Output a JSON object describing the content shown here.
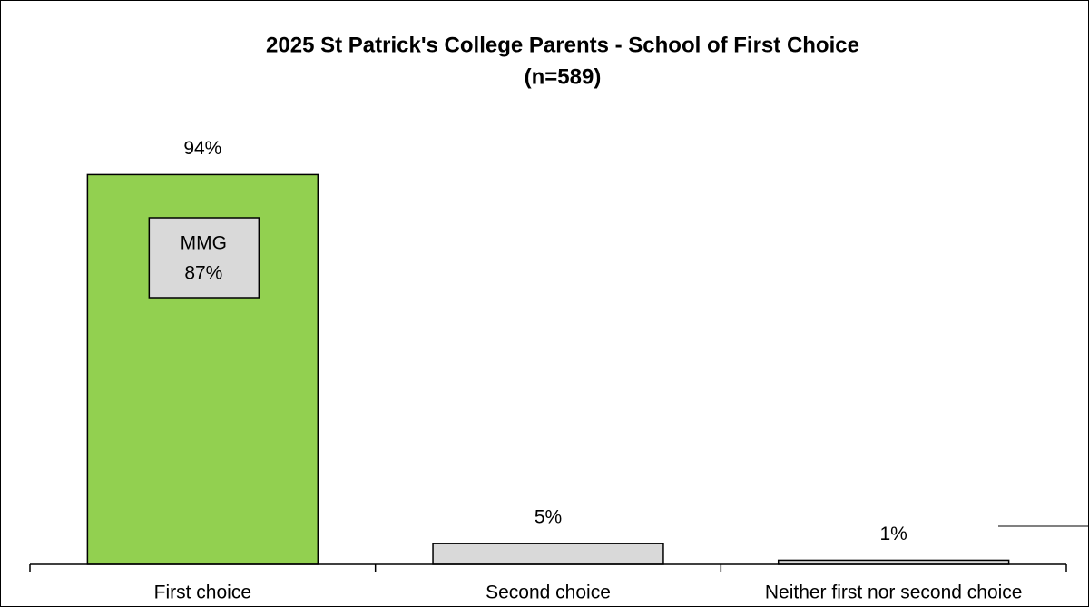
{
  "chart_data": {
    "type": "bar",
    "title": "2025 St Patrick's College Parents - School of First Choice",
    "subtitle": "(n=589)",
    "categories": [
      "First choice",
      "Second choice",
      "Neither first nor second choice"
    ],
    "values": [
      94,
      5,
      1
    ],
    "value_labels": [
      "94%",
      "5%",
      "1%"
    ],
    "colors": [
      "#92d050",
      "#d9d9d9",
      "#d9d9d9"
    ],
    "ylim": [
      0,
      100
    ],
    "annotation": [
      "MMG",
      "87%"
    ]
  }
}
